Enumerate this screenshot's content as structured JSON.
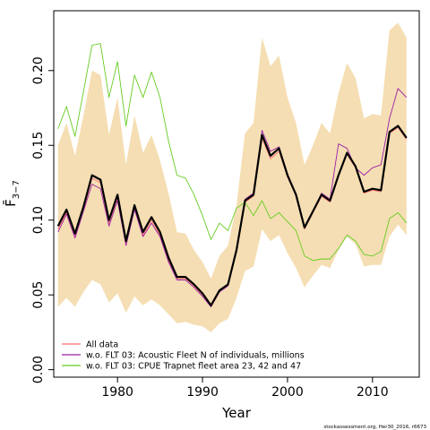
{
  "chart_data": {
    "type": "line",
    "xlabel": "Year",
    "ylabel": "F̄",
    "ylabel_sub": "3−7",
    "xlim": [
      1972.5,
      2015.5
    ],
    "ylim": [
      -0.005,
      0.24
    ],
    "x_ticks": [
      1980,
      1990,
      2000,
      2010
    ],
    "x_tick_labels": [
      "1980",
      "1990",
      "2000",
      "2010"
    ],
    "y_ticks": [
      0.0,
      0.05,
      0.1,
      0.15,
      0.2
    ],
    "y_tick_labels": [
      "0.00",
      "0.05",
      "0.10",
      "0.15",
      "0.20"
    ],
    "grid": false,
    "legend_position": "bottom-left",
    "footer": "stockassessment.org, Her30_2016, r6673",
    "x": [
      1973,
      1974,
      1975,
      1976,
      1977,
      1978,
      1979,
      1980,
      1981,
      1982,
      1983,
      1984,
      1985,
      1986,
      1987,
      1988,
      1989,
      1990,
      1991,
      1992,
      1993,
      1994,
      1995,
      1996,
      1997,
      1998,
      1999,
      2000,
      2001,
      2002,
      2003,
      2004,
      2005,
      2006,
      2007,
      2008,
      2009,
      2010,
      2011,
      2012,
      2013,
      2014
    ],
    "band": {
      "color": "#f5deb3",
      "upper": [
        0.15,
        0.165,
        0.143,
        0.17,
        0.2,
        0.197,
        0.157,
        0.182,
        0.137,
        0.17,
        0.145,
        0.157,
        0.14,
        0.118,
        0.092,
        0.091,
        0.08,
        0.072,
        0.061,
        0.076,
        0.083,
        0.11,
        0.158,
        0.165,
        0.222,
        0.203,
        0.21,
        0.182,
        0.165,
        0.137,
        0.15,
        0.165,
        0.158,
        0.185,
        0.205,
        0.195,
        0.168,
        0.171,
        0.17,
        0.227,
        0.232,
        0.222
      ],
      "lower": [
        0.042,
        0.048,
        0.042,
        0.052,
        0.06,
        0.057,
        0.045,
        0.051,
        0.038,
        0.049,
        0.043,
        0.047,
        0.043,
        0.037,
        0.031,
        0.032,
        0.03,
        0.029,
        0.025,
        0.031,
        0.034,
        0.048,
        0.066,
        0.069,
        0.094,
        0.086,
        0.09,
        0.078,
        0.068,
        0.055,
        0.063,
        0.07,
        0.068,
        0.08,
        0.089,
        0.084,
        0.069,
        0.07,
        0.07,
        0.089,
        0.097,
        0.09
      ]
    },
    "series": [
      {
        "color": "#000000",
        "width": 2.2,
        "values": [
          0.096,
          0.107,
          0.091,
          0.109,
          0.13,
          0.127,
          0.1,
          0.117,
          0.086,
          0.11,
          0.092,
          0.102,
          0.092,
          0.075,
          0.062,
          0.062,
          0.057,
          0.051,
          0.043,
          0.053,
          0.057,
          0.08,
          0.113,
          0.117,
          0.157,
          0.143,
          0.148,
          0.13,
          0.117,
          0.095,
          0.106,
          0.117,
          0.113,
          0.13,
          0.145,
          0.136,
          0.119,
          0.121,
          0.12,
          0.159,
          0.163,
          0.155
        ]
      },
      {
        "name": "All data",
        "color": "#ff6d6d",
        "width": 0.9,
        "values": [
          0.094,
          0.105,
          0.089,
          0.107,
          0.128,
          0.125,
          0.098,
          0.115,
          0.084,
          0.108,
          0.09,
          0.1,
          0.09,
          0.073,
          0.061,
          0.061,
          0.056,
          0.05,
          0.042,
          0.052,
          0.056,
          0.079,
          0.112,
          0.116,
          0.155,
          0.141,
          0.146,
          0.129,
          0.116,
          0.094,
          0.105,
          0.116,
          0.112,
          0.129,
          0.144,
          0.135,
          0.118,
          0.12,
          0.119,
          0.158,
          0.162,
          0.154
        ]
      },
      {
        "name": "w.o. FLT 03: Acoustic Fleet   N of individuals, millions",
        "color": "#9b1fa8",
        "width": 0.9,
        "values": [
          0.092,
          0.104,
          0.088,
          0.106,
          0.124,
          0.121,
          0.096,
          0.113,
          0.083,
          0.107,
          0.089,
          0.098,
          0.089,
          0.072,
          0.06,
          0.06,
          0.055,
          0.049,
          0.042,
          0.052,
          0.056,
          0.08,
          0.114,
          0.118,
          0.16,
          0.146,
          0.149,
          0.131,
          0.117,
          0.096,
          0.106,
          0.118,
          0.114,
          0.151,
          0.148,
          0.135,
          0.13,
          0.135,
          0.137,
          0.168,
          0.188,
          0.182
        ]
      },
      {
        "name": "w.o. FLT 03: CPUE Trapnet fleet area 23, 42 and 47",
        "color": "#66cc22",
        "width": 0.9,
        "values": [
          0.161,
          0.176,
          0.156,
          0.186,
          0.217,
          0.218,
          0.182,
          0.206,
          0.163,
          0.197,
          0.182,
          0.199,
          0.182,
          0.153,
          0.13,
          0.128,
          0.117,
          0.103,
          0.087,
          0.098,
          0.093,
          0.108,
          0.112,
          0.103,
          0.113,
          0.101,
          0.105,
          0.099,
          0.093,
          0.076,
          0.073,
          0.074,
          0.074,
          0.081,
          0.09,
          0.086,
          0.077,
          0.076,
          0.079,
          0.101,
          0.105,
          0.098
        ]
      }
    ]
  }
}
